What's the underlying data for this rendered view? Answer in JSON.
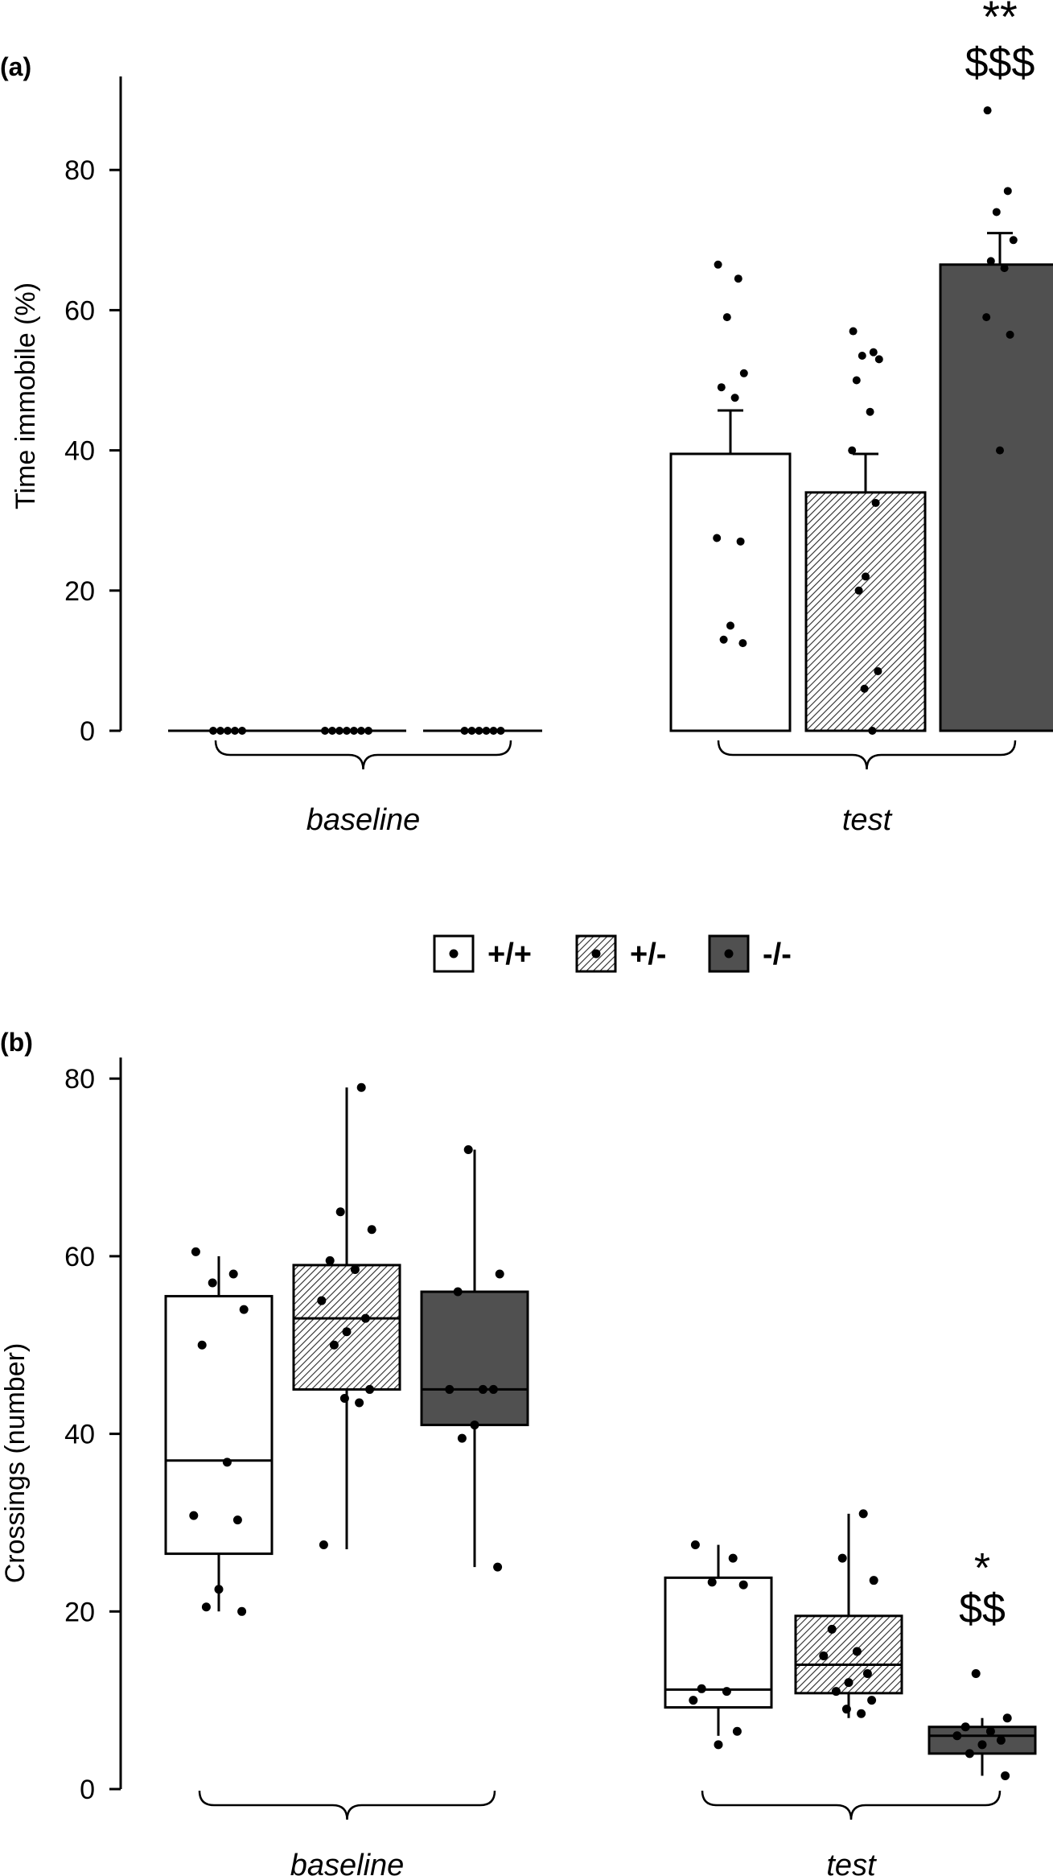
{
  "colors": {
    "wt_fill": "#ffffff",
    "het_fill": "hatched-gray",
    "ko_fill": "#505050",
    "stroke": "#000000"
  },
  "legend": [
    {
      "label": "+/+",
      "style": "white"
    },
    {
      "label": "+/-",
      "style": "hatched"
    },
    {
      "label": "-/-",
      "style": "dark"
    }
  ],
  "chart_data": [
    {
      "panel_label": "(a)",
      "type": "bar",
      "ylabel": "Time immobile (%)",
      "xlabel": "",
      "ylim": [
        0,
        92
      ],
      "yticks": [
        0,
        20,
        40,
        60,
        80
      ],
      "groups": [
        "baseline",
        "test"
      ],
      "series": [
        {
          "name": "+/+",
          "values": [
            0,
            39.5
          ],
          "error": [
            0,
            6.2
          ],
          "points": [
            [
              0,
              0,
              0,
              0,
              0
            ],
            [
              66.5,
              64.5,
              59,
              51,
              49,
              47.5,
              27.5,
              27,
              15,
              13,
              12.5
            ]
          ]
        },
        {
          "name": "+/-",
          "values": [
            0,
            34
          ],
          "error": [
            0,
            5.5
          ],
          "points": [
            [
              0,
              0,
              0,
              0,
              0,
              0,
              0
            ],
            [
              57,
              54,
              53.5,
              53,
              50,
              45.5,
              40,
              32.5,
              22,
              20,
              8.5,
              6,
              0
            ]
          ]
        },
        {
          "name": "-/-",
          "values": [
            0,
            66.5
          ],
          "error": [
            0,
            4.5
          ],
          "points": [
            [
              0,
              0,
              0,
              0,
              0,
              0
            ],
            [
              88.5,
              77,
              74,
              70,
              67,
              66,
              59,
              56.5,
              40
            ]
          ]
        }
      ],
      "annotations": [
        {
          "group": "test",
          "series": "-/-",
          "lines": [
            "**",
            "$$$"
          ]
        }
      ]
    },
    {
      "panel_label": "(b)",
      "type": "box",
      "ylabel": "Crossings (number)",
      "xlabel": "",
      "ylim": [
        0,
        83
      ],
      "yticks": [
        0,
        20,
        40,
        60,
        80
      ],
      "groups": [
        "baseline",
        "test"
      ],
      "series": [
        {
          "name": "+/+",
          "boxes": [
            {
              "min": 20,
              "q1": 26.5,
              "median": 37,
              "q3": 55.5,
              "max": 60
            },
            {
              "min": 6,
              "q1": 9.2,
              "median": 11.2,
              "q3": 23.8,
              "max": 27.5
            }
          ],
          "points": [
            [
              60.5,
              58,
              57,
              54,
              50,
              36.8,
              30.8,
              30.3,
              22.5,
              20.5,
              20
            ],
            [
              27.5,
              26,
              23.3,
              23,
              11.3,
              11,
              10,
              6.5,
              5
            ]
          ]
        },
        {
          "name": "+/-",
          "boxes": [
            {
              "min": 27,
              "q1": 45,
              "median": 53,
              "q3": 59,
              "max": 79
            },
            {
              "min": 8,
              "q1": 10.8,
              "median": 14,
              "q3": 19.5,
              "max": 31
            }
          ],
          "points": [
            [
              79,
              65,
              63,
              59.5,
              58.5,
              55,
              53,
              51.5,
              50,
              45,
              44,
              43.5,
              27.5
            ],
            [
              31,
              26,
              23.5,
              18,
              15.5,
              15,
              13,
              12,
              11,
              10,
              9,
              8.5
            ]
          ]
        },
        {
          "name": "-/-",
          "boxes": [
            {
              "min": 25,
              "q1": 41,
              "median": 45,
              "q3": 56,
              "max": 72
            },
            {
              "min": 1.5,
              "q1": 4,
              "median": 6,
              "q3": 7,
              "max": 8
            }
          ],
          "points": [
            [
              72,
              58,
              56,
              45,
              45,
              45,
              41,
              39.5,
              25
            ],
            [
              13,
              8,
              7,
              6.5,
              6,
              5.5,
              5,
              4,
              1.5
            ]
          ]
        }
      ],
      "annotations": [
        {
          "group": "test",
          "series": "-/-",
          "lines": [
            "*",
            "$$"
          ]
        }
      ]
    }
  ]
}
